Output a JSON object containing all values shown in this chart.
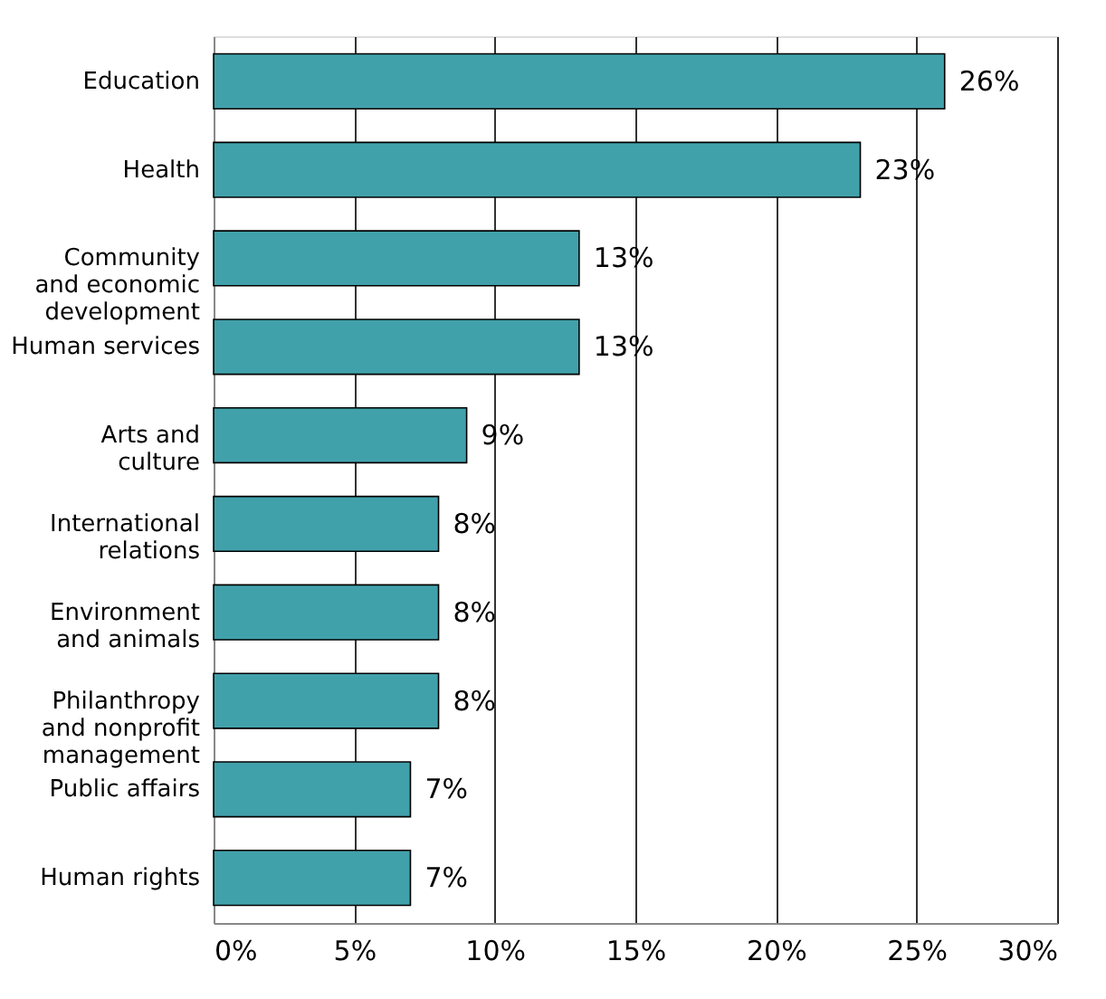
{
  "chart_data": {
    "type": "bar",
    "orientation": "horizontal",
    "categories": [
      "Education",
      "Health",
      "Community\nand economic\ndevelopment",
      "Human services",
      "Arts and\nculture",
      "International\nrelations",
      "Environment\nand animals",
      "Philanthropy\nand nonprofit\nmanagement",
      "Public affairs",
      "Human rights"
    ],
    "values": [
      26,
      23,
      13,
      13,
      9,
      8,
      8,
      8,
      7,
      7
    ],
    "value_labels": [
      "26%",
      "23%",
      "13%",
      "13%",
      "9%",
      "8%",
      "8%",
      "8%",
      "7%",
      "7%"
    ],
    "color": "#41a1ab",
    "xlim": [
      0,
      30
    ],
    "xticks": [
      {
        "value": 0,
        "label": "0%"
      },
      {
        "value": 5,
        "label": "5%"
      },
      {
        "value": 10,
        "label": "10%"
      },
      {
        "value": 15,
        "label": "15%"
      },
      {
        "value": 20,
        "label": "20%"
      },
      {
        "value": 25,
        "label": "25%"
      },
      {
        "value": 30,
        "label": "30%"
      }
    ],
    "grid": "x"
  }
}
